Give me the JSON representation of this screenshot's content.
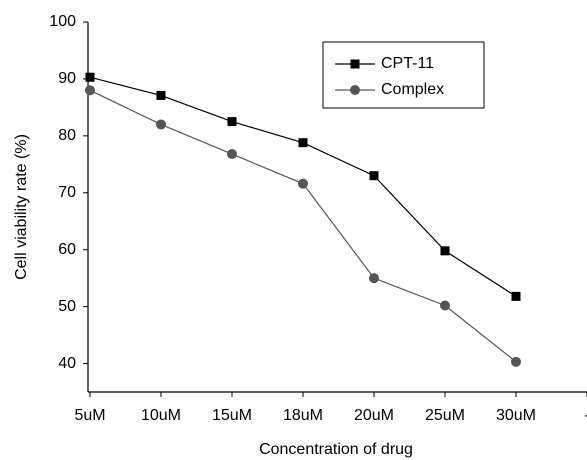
{
  "chart_data": {
    "type": "line",
    "x_label": "Concentration of drug",
    "y_label": "Cell viability rate (%)",
    "categories": [
      "5uM",
      "10uM",
      "15uM",
      "18uM",
      "20uM",
      "25uM",
      "30uM",
      "-"
    ],
    "series": [
      {
        "name": "CPT-11",
        "color": "#000000",
        "marker": "square",
        "values": [
          90.3,
          87.1,
          82.5,
          78.8,
          73.0,
          59.8,
          51.8,
          null
        ]
      },
      {
        "name": "Complex",
        "color": "#555555",
        "marker": "circle",
        "values": [
          88.0,
          82.0,
          76.8,
          71.6,
          55.0,
          50.2,
          40.3,
          null
        ]
      }
    ],
    "ylim": [
      35,
      100
    ],
    "yticks": [
      40,
      50,
      60,
      70,
      80,
      90,
      100
    ],
    "grid": false,
    "legend": "upper-right"
  }
}
